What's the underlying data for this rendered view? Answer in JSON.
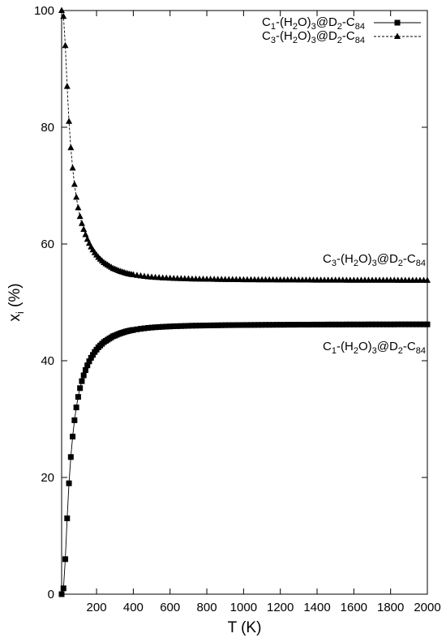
{
  "chart_data": {
    "type": "line",
    "xlabel": "T (K)",
    "ylabel": "x",
    "ylabel_sub": "i",
    "ylabel_unit": " (%)",
    "xlim": [
      10,
      2000
    ],
    "ylim": [
      0,
      100
    ],
    "xticks": [
      200,
      400,
      600,
      800,
      1000,
      1200,
      1400,
      1600,
      1800,
      2000
    ],
    "yticks": [
      0,
      20,
      40,
      60,
      80,
      100
    ],
    "grid": false,
    "legend_position": "top-right",
    "x": [
      10,
      20,
      30,
      40,
      50,
      60,
      70,
      80,
      90,
      100,
      110,
      120,
      130,
      140,
      150,
      160,
      170,
      180,
      190,
      200,
      210,
      220,
      230,
      240,
      250,
      260,
      270,
      280,
      290,
      300,
      310,
      320,
      330,
      340,
      350,
      360,
      370,
      380,
      390,
      400,
      420,
      440,
      460,
      480,
      500,
      520,
      540,
      560,
      580,
      600,
      620,
      640,
      660,
      680,
      700,
      720,
      740,
      760,
      780,
      800,
      820,
      840,
      860,
      880,
      900,
      920,
      940,
      960,
      980,
      1000,
      1020,
      1040,
      1060,
      1080,
      1100,
      1120,
      1140,
      1160,
      1180,
      1200,
      1220,
      1240,
      1260,
      1280,
      1300,
      1320,
      1340,
      1360,
      1380,
      1400,
      1420,
      1440,
      1460,
      1480,
      1500,
      1520,
      1540,
      1560,
      1580,
      1600,
      1620,
      1640,
      1660,
      1680,
      1700,
      1720,
      1740,
      1760,
      1780,
      1800,
      1820,
      1840,
      1860,
      1880,
      1900,
      1920,
      1940,
      1960,
      1980,
      2000
    ],
    "series": [
      {
        "name": "C1-(H2O)3@D2-C84",
        "legend": [
          {
            "t": "C"
          },
          {
            "t": "1",
            "sub": true
          },
          {
            "t": "-(H"
          },
          {
            "t": "2",
            "sub": true
          },
          {
            "t": "O)"
          },
          {
            "t": "3",
            "sub": true
          },
          {
            "t": "@D"
          },
          {
            "t": "2",
            "sub": true
          },
          {
            "t": "-C"
          },
          {
            "t": "84",
            "sub": true
          }
        ],
        "marker": "square",
        "dash": "solid",
        "values": [
          0.0,
          1.0,
          6.0,
          13.0,
          19.0,
          23.5,
          27.0,
          29.8,
          32.0,
          33.8,
          35.3,
          36.5,
          37.5,
          38.4,
          39.2,
          39.9,
          40.5,
          41.0,
          41.5,
          41.9,
          42.3,
          42.6,
          42.9,
          43.2,
          43.4,
          43.6,
          43.8,
          44.0,
          44.2,
          44.3,
          44.45,
          44.58,
          44.7,
          44.8,
          44.9,
          45.0,
          45.08,
          45.15,
          45.22,
          45.28,
          45.38,
          45.47,
          45.55,
          45.62,
          45.68,
          45.73,
          45.77,
          45.81,
          45.84,
          45.87,
          45.9,
          45.92,
          45.94,
          45.96,
          45.98,
          46.0,
          46.01,
          46.02,
          46.03,
          46.04,
          46.05,
          46.06,
          46.07,
          46.08,
          46.09,
          46.1,
          46.1,
          46.11,
          46.11,
          46.12,
          46.12,
          46.13,
          46.13,
          46.14,
          46.14,
          46.15,
          46.15,
          46.15,
          46.16,
          46.16,
          46.16,
          46.17,
          46.17,
          46.17,
          46.18,
          46.18,
          46.18,
          46.18,
          46.19,
          46.19,
          46.19,
          46.19,
          46.2,
          46.2,
          46.2,
          46.2,
          46.2,
          46.21,
          46.21,
          46.21,
          46.21,
          46.21,
          46.21,
          46.22,
          46.22,
          46.22,
          46.22,
          46.22,
          46.22,
          46.22,
          46.22,
          46.23,
          46.23,
          46.23,
          46.23,
          46.23,
          46.23,
          46.23,
          46.23,
          46.23
        ]
      },
      {
        "name": "C3-(H2O)3@D2-C84",
        "legend": [
          {
            "t": "C"
          },
          {
            "t": "3",
            "sub": true
          },
          {
            "t": "-(H"
          },
          {
            "t": "2",
            "sub": true
          },
          {
            "t": "O)"
          },
          {
            "t": "3",
            "sub": true
          },
          {
            "t": "@D"
          },
          {
            "t": "2",
            "sub": true
          },
          {
            "t": "-C"
          },
          {
            "t": "84",
            "sub": true
          }
        ],
        "marker": "triangle",
        "dash": "dashed",
        "values": [
          100.0,
          99.0,
          94.0,
          87.0,
          81.0,
          76.5,
          73.0,
          70.2,
          68.0,
          66.2,
          64.7,
          63.5,
          62.5,
          61.6,
          60.8,
          60.1,
          59.5,
          59.0,
          58.5,
          58.1,
          57.7,
          57.4,
          57.1,
          56.8,
          56.6,
          56.4,
          56.2,
          56.0,
          55.8,
          55.7,
          55.55,
          55.42,
          55.3,
          55.2,
          55.1,
          55.0,
          54.92,
          54.85,
          54.78,
          54.72,
          54.62,
          54.53,
          54.45,
          54.38,
          54.32,
          54.27,
          54.23,
          54.19,
          54.16,
          54.13,
          54.1,
          54.08,
          54.06,
          54.04,
          54.02,
          54.0,
          53.99,
          53.98,
          53.97,
          53.96,
          53.95,
          53.94,
          53.93,
          53.92,
          53.91,
          53.9,
          53.9,
          53.89,
          53.89,
          53.88,
          53.88,
          53.87,
          53.87,
          53.86,
          53.86,
          53.85,
          53.85,
          53.85,
          53.84,
          53.84,
          53.84,
          53.83,
          53.83,
          53.83,
          53.82,
          53.82,
          53.82,
          53.82,
          53.81,
          53.81,
          53.81,
          53.81,
          53.8,
          53.8,
          53.8,
          53.8,
          53.8,
          53.79,
          53.79,
          53.79,
          53.79,
          53.79,
          53.79,
          53.78,
          53.78,
          53.78,
          53.78,
          53.78,
          53.78,
          53.78,
          53.78,
          53.77,
          53.77,
          53.77,
          53.77,
          53.77,
          53.77,
          53.77,
          53.77,
          53.77
        ]
      }
    ],
    "annotations": [
      {
        "series": 1,
        "at_x": 1560,
        "value": 57.5,
        "text": [
          {
            "t": "C"
          },
          {
            "t": "3",
            "sub": true
          },
          {
            "t": "-(H"
          },
          {
            "t": "2",
            "sub": true
          },
          {
            "t": "O)"
          },
          {
            "t": "3",
            "sub": true
          },
          {
            "t": "@D"
          },
          {
            "t": "2",
            "sub": true
          },
          {
            "t": "-C"
          },
          {
            "t": "84",
            "sub": true
          }
        ]
      },
      {
        "series": 0,
        "at_x": 1560,
        "value": 42.5,
        "text": [
          {
            "t": "C"
          },
          {
            "t": "1",
            "sub": true
          },
          {
            "t": "-(H"
          },
          {
            "t": "2",
            "sub": true
          },
          {
            "t": "O)"
          },
          {
            "t": "3",
            "sub": true
          },
          {
            "t": "@D"
          },
          {
            "t": "2",
            "sub": true
          },
          {
            "t": "-C"
          },
          {
            "t": "84",
            "sub": true
          }
        ]
      }
    ],
    "colors": {
      "line": "#000000",
      "axis": "#000000",
      "background": "#ffffff"
    }
  }
}
